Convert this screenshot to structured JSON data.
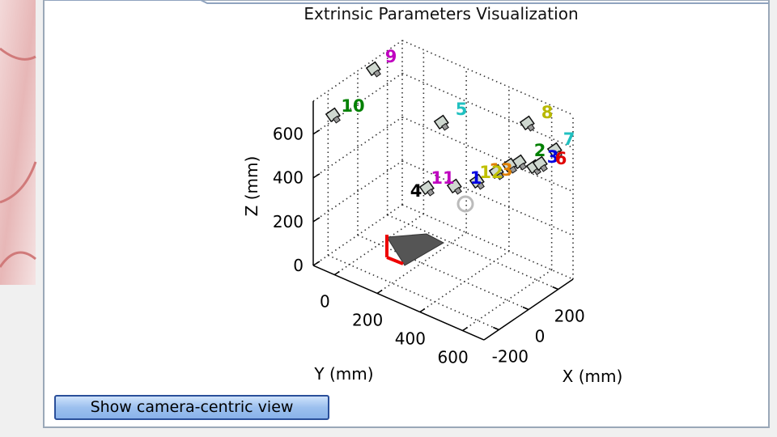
{
  "chart_data": {
    "type": "scatter3d",
    "title": "Extrinsic Parameters Visualization",
    "xlabel": "X (mm)",
    "ylabel": "Y (mm)",
    "zlabel": "Z (mm)",
    "xlim": [
      -300,
      300
    ],
    "ylim": [
      -100,
      700
    ],
    "zlim": [
      0,
      750
    ],
    "xticks": [
      -200,
      0,
      200
    ],
    "yticks": [
      0,
      200,
      400,
      600
    ],
    "zticks": [
      0,
      200,
      400,
      600
    ],
    "grid": true,
    "cameras": [
      {
        "label": "9",
        "color": "#c000c0"
      },
      {
        "label": "10",
        "color": "#008000"
      },
      {
        "label": "5",
        "color": "#20c0c0"
      },
      {
        "label": "8",
        "color": "#b8b800"
      },
      {
        "label": "7",
        "color": "#20c0c0"
      },
      {
        "label": "2",
        "color": "#008000"
      },
      {
        "label": "3",
        "color": "#0000e0"
      },
      {
        "label": "6",
        "color": "#e00000"
      },
      {
        "label": "13",
        "color": "#e08000"
      },
      {
        "label": "12",
        "color": "#c0c000"
      },
      {
        "label": "1",
        "color": "#0000e0"
      },
      {
        "label": "11",
        "color": "#c000c0"
      },
      {
        "label": "4",
        "color": "#000000"
      }
    ]
  },
  "window": {
    "button": "Show camera-centric view"
  }
}
